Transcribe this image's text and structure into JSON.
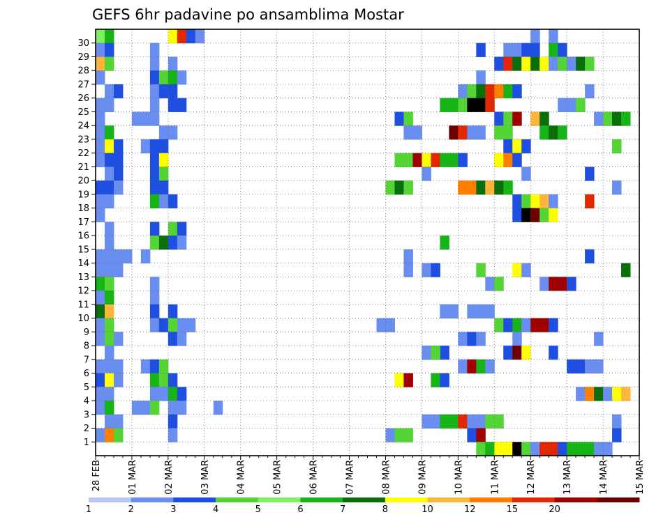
{
  "chart_data": {
    "type": "heatmap",
    "title": "GEFS 6hr padavine po ansamblima Mostar",
    "xlabel": "",
    "ylabel": "",
    "x_tick_labels": [
      "28 FEB",
      "01 MAR",
      "02 MAR",
      "03 MAR",
      "04 MAR",
      "05 MAR",
      "06 MAR",
      "07 MAR",
      "08 MAR",
      "09 MAR",
      "10 MAR",
      "11 MAR",
      "12 MAR",
      "13 MAR",
      "14 MAR",
      "15 MAR"
    ],
    "y_tick_labels": [
      "1",
      "2",
      "3",
      "4",
      "5",
      "6",
      "7",
      "8",
      "9",
      "10",
      "11",
      "12",
      "13",
      "14",
      "15",
      "16",
      "17",
      "18",
      "19",
      "20",
      "21",
      "22",
      "23",
      "24",
      "25",
      "26",
      "27",
      "28",
      "29",
      "30"
    ],
    "time_steps_per_day": 4,
    "num_steps": 60,
    "num_members": 31,
    "grid": true,
    "colorbar": {
      "levels": [
        "1",
        "2",
        "3",
        "4",
        "5",
        "6",
        "7",
        "8",
        "10",
        "12",
        "15",
        "20"
      ],
      "colors": [
        "#b4c7f7",
        "#6a8ef0",
        "#1f4fe0",
        "#55d435",
        "#80f060",
        "#16b416",
        "#0a6e0a",
        "#ffff00",
        "#ffb43c",
        "#ff7e00",
        "#e12800",
        "#a00000",
        "#6e0000"
      ]
    },
    "cells": [
      [
        30,
        0,
        4
      ],
      [
        30,
        1,
        5
      ],
      [
        29,
        0,
        1
      ],
      [
        29,
        1,
        2
      ],
      [
        28,
        0,
        8
      ],
      [
        28,
        1,
        3
      ],
      [
        27,
        0,
        1
      ],
      [
        26,
        1,
        1
      ],
      [
        26,
        2,
        2
      ],
      [
        25,
        0,
        1
      ],
      [
        25,
        1,
        1
      ],
      [
        24,
        0,
        1
      ],
      [
        23,
        0,
        1
      ],
      [
        23,
        1,
        5
      ],
      [
        22,
        0,
        1
      ],
      [
        22,
        1,
        7
      ],
      [
        22,
        2,
        2
      ],
      [
        21,
        0,
        1
      ],
      [
        21,
        1,
        2
      ],
      [
        21,
        2,
        2
      ],
      [
        20,
        1,
        1
      ],
      [
        20,
        2,
        2
      ],
      [
        19,
        0,
        2
      ],
      [
        19,
        1,
        2
      ],
      [
        19,
        2,
        1
      ],
      [
        18,
        0,
        1
      ],
      [
        18,
        1,
        1
      ],
      [
        17,
        0,
        1
      ],
      [
        16,
        1,
        1
      ],
      [
        15,
        1,
        1
      ],
      [
        14,
        0,
        1
      ],
      [
        14,
        1,
        1
      ],
      [
        14,
        2,
        1
      ],
      [
        13,
        0,
        1
      ],
      [
        13,
        1,
        1
      ],
      [
        13,
        2,
        1
      ],
      [
        12,
        0,
        5
      ],
      [
        12,
        1,
        3
      ],
      [
        11,
        0,
        1
      ],
      [
        11,
        1,
        5
      ],
      [
        10,
        0,
        6
      ],
      [
        10,
        1,
        8
      ],
      [
        9,
        0,
        1
      ],
      [
        9,
        1,
        3
      ],
      [
        8,
        0,
        1
      ],
      [
        8,
        1,
        3
      ],
      [
        8,
        2,
        1
      ],
      [
        7,
        1,
        1
      ],
      [
        6,
        0,
        1
      ],
      [
        6,
        1,
        1
      ],
      [
        6,
        2,
        1
      ],
      [
        5,
        0,
        2
      ],
      [
        5,
        1,
        7
      ],
      [
        5,
        2,
        1
      ],
      [
        4,
        0,
        1
      ],
      [
        4,
        1,
        1
      ],
      [
        3,
        0,
        1
      ],
      [
        3,
        1,
        5
      ],
      [
        2,
        1,
        1
      ],
      [
        2,
        2,
        1
      ],
      [
        1,
        0,
        1
      ],
      [
        1,
        1,
        9
      ],
      [
        1,
        2,
        3
      ],
      [
        30,
        8,
        7
      ],
      [
        30,
        9,
        10
      ],
      [
        30,
        10,
        2
      ],
      [
        30,
        11,
        1
      ],
      [
        29,
        6,
        1
      ],
      [
        28,
        6,
        1
      ],
      [
        28,
        8,
        1
      ],
      [
        27,
        6,
        2
      ],
      [
        27,
        7,
        3
      ],
      [
        27,
        8,
        5
      ],
      [
        27,
        9,
        1
      ],
      [
        26,
        6,
        1
      ],
      [
        26,
        7,
        2
      ],
      [
        26,
        8,
        2
      ],
      [
        25,
        6,
        1
      ],
      [
        25,
        8,
        2
      ],
      [
        25,
        9,
        2
      ],
      [
        24,
        4,
        1
      ],
      [
        24,
        5,
        1
      ],
      [
        24,
        6,
        1
      ],
      [
        23,
        7,
        1
      ],
      [
        23,
        8,
        1
      ],
      [
        22,
        5,
        1
      ],
      [
        22,
        6,
        2
      ],
      [
        22,
        7,
        2
      ],
      [
        21,
        6,
        2
      ],
      [
        21,
        7,
        7
      ],
      [
        20,
        6,
        2
      ],
      [
        20,
        7,
        3
      ],
      [
        19,
        6,
        2
      ],
      [
        19,
        7,
        2
      ],
      [
        18,
        6,
        5
      ],
      [
        18,
        7,
        1
      ],
      [
        18,
        8,
        2
      ],
      [
        16,
        6,
        2
      ],
      [
        16,
        8,
        3
      ],
      [
        16,
        9,
        2
      ],
      [
        15,
        6,
        3
      ],
      [
        15,
        7,
        6
      ],
      [
        15,
        8,
        2
      ],
      [
        15,
        9,
        1
      ],
      [
        14,
        0,
        1
      ],
      [
        12,
        6,
        1
      ],
      [
        11,
        6,
        1
      ],
      [
        10,
        6,
        2
      ],
      [
        10,
        8,
        2
      ],
      [
        9,
        6,
        1
      ],
      [
        9,
        7,
        2
      ],
      [
        9,
        8,
        3
      ],
      [
        9,
        9,
        1
      ],
      [
        9,
        10,
        1
      ],
      [
        8,
        8,
        2
      ],
      [
        8,
        9,
        1
      ],
      [
        6,
        5,
        1
      ],
      [
        6,
        6,
        2
      ],
      [
        6,
        7,
        3
      ],
      [
        5,
        6,
        5
      ],
      [
        5,
        7,
        3
      ],
      [
        5,
        8,
        2
      ],
      [
        4,
        6,
        1
      ],
      [
        4,
        7,
        1
      ],
      [
        4,
        8,
        5
      ],
      [
        4,
        9,
        2
      ],
      [
        3,
        4,
        1
      ],
      [
        3,
        5,
        1
      ],
      [
        3,
        6,
        3
      ],
      [
        3,
        8,
        1
      ],
      [
        3,
        9,
        1
      ],
      [
        2,
        8,
        2
      ],
      [
        1,
        8,
        1
      ],
      [
        14,
        3,
        1
      ],
      [
        14,
        5,
        1
      ],
      [
        3,
        13,
        1
      ],
      [
        24,
        33,
        2
      ],
      [
        24,
        34,
        3
      ],
      [
        23,
        34,
        1
      ],
      [
        23,
        35,
        1
      ],
      [
        21,
        33,
        3
      ],
      [
        21,
        34,
        3
      ],
      [
        21,
        35,
        11
      ],
      [
        21,
        36,
        7
      ],
      [
        21,
        37,
        10
      ],
      [
        21,
        38,
        5
      ],
      [
        21,
        39,
        5
      ],
      [
        21,
        40,
        2
      ],
      [
        19,
        32,
        3
      ],
      [
        19,
        33,
        6
      ],
      [
        19,
        34,
        3
      ],
      [
        20,
        36,
        1
      ],
      [
        14,
        34,
        1
      ],
      [
        13,
        34,
        1
      ],
      [
        13,
        36,
        1
      ],
      [
        13,
        37,
        2
      ],
      [
        10,
        38,
        1
      ],
      [
        10,
        39,
        1
      ],
      [
        9,
        31,
        1
      ],
      [
        9,
        32,
        1
      ],
      [
        7,
        36,
        1
      ],
      [
        7,
        37,
        3
      ],
      [
        7,
        38,
        2
      ],
      [
        5,
        33,
        7
      ],
      [
        5,
        34,
        11
      ],
      [
        5,
        37,
        5
      ],
      [
        5,
        38,
        2
      ],
      [
        2,
        36,
        1
      ],
      [
        2,
        37,
        1
      ],
      [
        2,
        38,
        5
      ],
      [
        2,
        39,
        5
      ],
      [
        2,
        40,
        10
      ],
      [
        1,
        32,
        1
      ],
      [
        1,
        33,
        3
      ],
      [
        1,
        34,
        3
      ],
      [
        30,
        48,
        1
      ],
      [
        30,
        50,
        1
      ],
      [
        29,
        42,
        2
      ],
      [
        29,
        45,
        1
      ],
      [
        29,
        46,
        1
      ],
      [
        29,
        47,
        2
      ],
      [
        29,
        48,
        2
      ],
      [
        29,
        50,
        5
      ],
      [
        29,
        51,
        2
      ],
      [
        28,
        44,
        2
      ],
      [
        28,
        45,
        10
      ],
      [
        28,
        46,
        6
      ],
      [
        28,
        47,
        7
      ],
      [
        28,
        48,
        6
      ],
      [
        28,
        49,
        7
      ],
      [
        28,
        50,
        1
      ],
      [
        28,
        51,
        3
      ],
      [
        28,
        52,
        1
      ],
      [
        28,
        53,
        6
      ],
      [
        28,
        54,
        3
      ],
      [
        27,
        42,
        1
      ],
      [
        26,
        40,
        1
      ],
      [
        26,
        41,
        3
      ],
      [
        26,
        42,
        6
      ],
      [
        26,
        43,
        10
      ],
      [
        26,
        44,
        9
      ],
      [
        26,
        45,
        5
      ],
      [
        26,
        46,
        2
      ],
      [
        26,
        54,
        1
      ],
      [
        25,
        38,
        5
      ],
      [
        25,
        39,
        5
      ],
      [
        25,
        40,
        3
      ],
      [
        25,
        41,
        13
      ],
      [
        25,
        42,
        13
      ],
      [
        25,
        43,
        10
      ],
      [
        25,
        51,
        1
      ],
      [
        25,
        52,
        1
      ],
      [
        25,
        53,
        3
      ],
      [
        24,
        44,
        2
      ],
      [
        24,
        45,
        3
      ],
      [
        24,
        46,
        11
      ],
      [
        24,
        48,
        8
      ],
      [
        24,
        49,
        6
      ],
      [
        24,
        55,
        1
      ],
      [
        24,
        56,
        3
      ],
      [
        24,
        57,
        6
      ],
      [
        24,
        58,
        5
      ],
      [
        23,
        39,
        12
      ],
      [
        23,
        40,
        10
      ],
      [
        23,
        41,
        1
      ],
      [
        23,
        42,
        1
      ],
      [
        23,
        44,
        3
      ],
      [
        23,
        45,
        3
      ],
      [
        23,
        49,
        5
      ],
      [
        23,
        50,
        6
      ],
      [
        23,
        51,
        5
      ],
      [
        22,
        45,
        2
      ],
      [
        22,
        46,
        7
      ],
      [
        22,
        47,
        2
      ],
      [
        22,
        57,
        3
      ],
      [
        21,
        44,
        7
      ],
      [
        21,
        45,
        9
      ],
      [
        21,
        46,
        2
      ],
      [
        20,
        47,
        1
      ],
      [
        20,
        54,
        2
      ],
      [
        19,
        40,
        9
      ],
      [
        19,
        41,
        9
      ],
      [
        19,
        42,
        6
      ],
      [
        19,
        43,
        8
      ],
      [
        19,
        44,
        6
      ],
      [
        19,
        45,
        5
      ],
      [
        19,
        57,
        1
      ],
      [
        18,
        46,
        2
      ],
      [
        18,
        47,
        3
      ],
      [
        18,
        48,
        7
      ],
      [
        18,
        49,
        8
      ],
      [
        18,
        50,
        1
      ],
      [
        18,
        54,
        10
      ],
      [
        17,
        46,
        2
      ],
      [
        17,
        47,
        13
      ],
      [
        17,
        48,
        12
      ],
      [
        17,
        49,
        3
      ],
      [
        17,
        50,
        7
      ],
      [
        15,
        38,
        5
      ],
      [
        14,
        54,
        2
      ],
      [
        13,
        42,
        3
      ],
      [
        13,
        46,
        7
      ],
      [
        13,
        47,
        1
      ],
      [
        13,
        58,
        6
      ],
      [
        12,
        43,
        1
      ],
      [
        12,
        44,
        3
      ],
      [
        12,
        49,
        1
      ],
      [
        12,
        50,
        11
      ],
      [
        12,
        51,
        11
      ],
      [
        12,
        52,
        2
      ],
      [
        10,
        38,
        1
      ],
      [
        10,
        39,
        1
      ],
      [
        10,
        41,
        1
      ],
      [
        10,
        42,
        1
      ],
      [
        10,
        43,
        1
      ],
      [
        9,
        44,
        3
      ],
      [
        9,
        45,
        2
      ],
      [
        9,
        46,
        5
      ],
      [
        9,
        47,
        1
      ],
      [
        9,
        48,
        11
      ],
      [
        9,
        49,
        11
      ],
      [
        9,
        50,
        2
      ],
      [
        8,
        40,
        1
      ],
      [
        8,
        41,
        2
      ],
      [
        8,
        42,
        1
      ],
      [
        8,
        46,
        1
      ],
      [
        8,
        55,
        1
      ],
      [
        7,
        36,
        1
      ],
      [
        7,
        37,
        3
      ],
      [
        7,
        45,
        2
      ],
      [
        7,
        46,
        12
      ],
      [
        7,
        47,
        7
      ],
      [
        7,
        50,
        2
      ],
      [
        6,
        40,
        1
      ],
      [
        6,
        41,
        11
      ],
      [
        6,
        42,
        5
      ],
      [
        6,
        43,
        1
      ],
      [
        6,
        52,
        2
      ],
      [
        6,
        53,
        2
      ],
      [
        6,
        54,
        1
      ],
      [
        6,
        55,
        1
      ],
      [
        4,
        53,
        1
      ],
      [
        4,
        54,
        9
      ],
      [
        4,
        55,
        6
      ],
      [
        4,
        56,
        1
      ],
      [
        4,
        57,
        7
      ],
      [
        4,
        58,
        8
      ],
      [
        2,
        41,
        1
      ],
      [
        2,
        42,
        1
      ],
      [
        2,
        43,
        3
      ],
      [
        2,
        44,
        3
      ],
      [
        2,
        57,
        1
      ],
      [
        1,
        41,
        2
      ],
      [
        1,
        42,
        11
      ],
      [
        1,
        57,
        2
      ],
      [
        0,
        42,
        3
      ],
      [
        0,
        43,
        5
      ],
      [
        0,
        44,
        7
      ],
      [
        0,
        45,
        7
      ],
      [
        0,
        46,
        13
      ],
      [
        0,
        47,
        3
      ],
      [
        0,
        48,
        1
      ],
      [
        0,
        49,
        10
      ],
      [
        0,
        50,
        10
      ],
      [
        0,
        51,
        2
      ],
      [
        0,
        52,
        5
      ],
      [
        0,
        53,
        5
      ],
      [
        0,
        54,
        5
      ],
      [
        0,
        55,
        1
      ],
      [
        0,
        56,
        1
      ]
    ]
  }
}
